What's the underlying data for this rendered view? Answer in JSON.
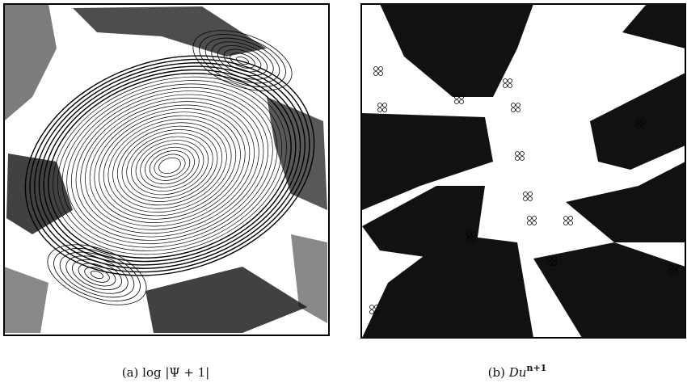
{
  "panels": [
    {
      "label": "(a)",
      "expression": "log |Ψ + 1|"
    },
    {
      "label": "(b)",
      "expression": "Du",
      "superscript": "n+1"
    }
  ]
}
